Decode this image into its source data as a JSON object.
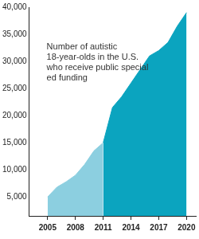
{
  "chart_data": {
    "type": "area",
    "annotation": "Number of autistic 18-year-olds in the U.S. who receive public special ed funding",
    "x": [
      2005,
      2006,
      2007,
      2008,
      2009,
      2010,
      2011,
      2012,
      2013,
      2014,
      2015,
      2016,
      2017,
      2018,
      2019,
      2020
    ],
    "series": [
      {
        "color": "#8ccfe0",
        "values": [
          5000,
          6800,
          7800,
          9000,
          11000,
          13500,
          15000,
          null,
          null,
          null,
          null,
          null,
          null,
          null,
          null,
          null
        ]
      },
      {
        "color": "#0ba4bf",
        "values": [
          null,
          null,
          null,
          null,
          null,
          null,
          15000,
          21500,
          23500,
          26000,
          28500,
          31000,
          32000,
          33500,
          36500,
          39000
        ]
      }
    ],
    "xlim": [
      2003,
      2021
    ],
    "xticks": [
      2005,
      2008,
      2011,
      2014,
      2017,
      2020
    ],
    "ylim": [
      1500,
      40000
    ],
    "yticks": [
      {
        "value": 5000,
        "label": "5,000"
      },
      {
        "value": 10000,
        "label": "10,000"
      },
      {
        "value": 15000,
        "label": "15,000"
      },
      {
        "value": 20000,
        "label": "20,000"
      },
      {
        "value": 25000,
        "label": "25,000"
      },
      {
        "value": 30000,
        "label": "30,000"
      },
      {
        "value": 35000,
        "label": "35,000"
      },
      {
        "value": 40000,
        "label": "40,000"
      }
    ],
    "grid": false
  }
}
